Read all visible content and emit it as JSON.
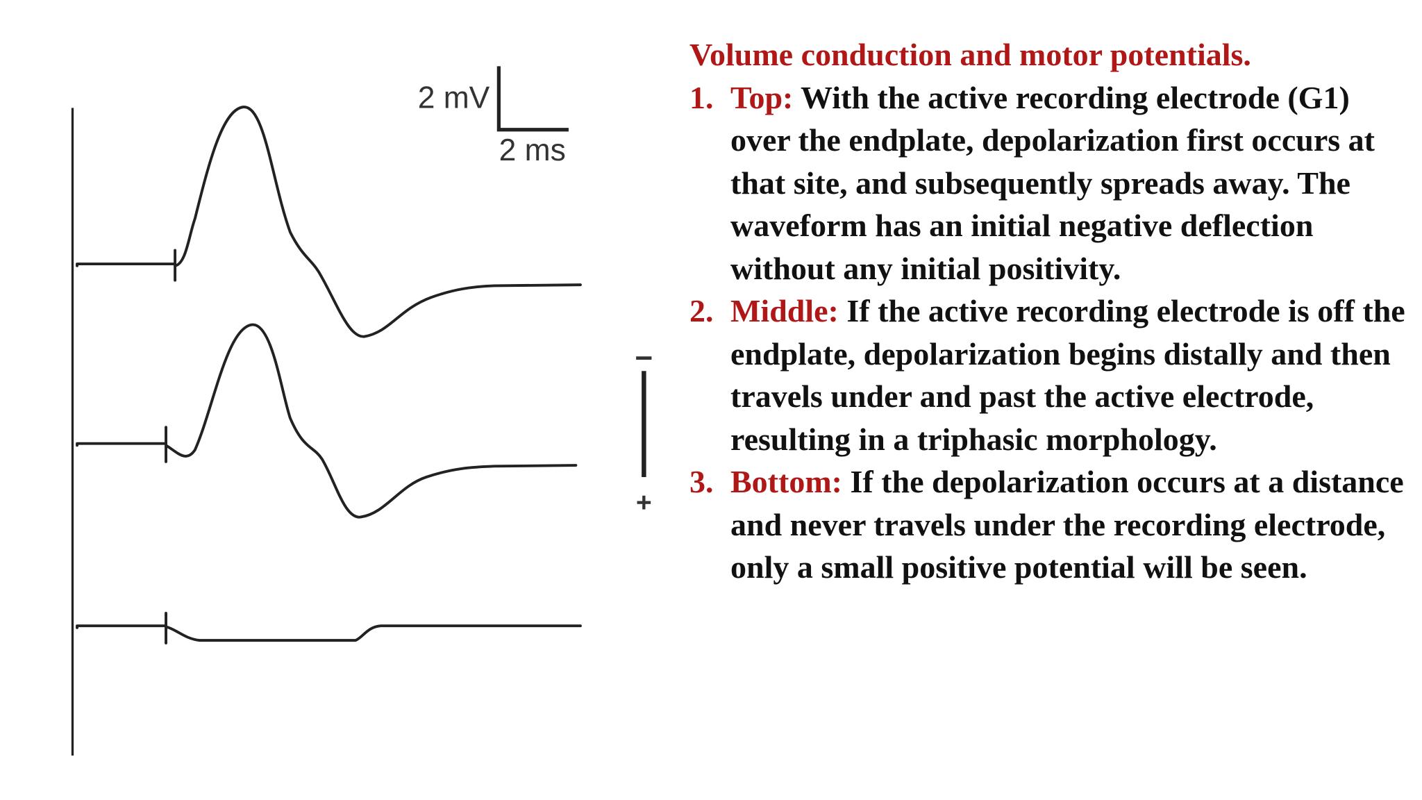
{
  "figure": {
    "scale_voltage": "2 mV",
    "scale_time": "2 ms",
    "electrode_negative": "−",
    "electrode_positive": "+"
  },
  "text": {
    "title": "Volume conduction and motor potentials.",
    "items": [
      {
        "number": "1.",
        "label": "Top:",
        "text": "With the active recording electrode (G1) over the endplate, depolarization first occurs at that site, and subsequently spreads away. The waveform has an initial negative deflection without any initial positivity."
      },
      {
        "number": "2.",
        "label": "Middle:",
        "text": "If the active recording electrode is off the endplate, depolarization begins distally and then travels under and past the active electrode, resulting in a triphasic morphology."
      },
      {
        "number": "3.",
        "label": "Bottom:",
        "text": "If the depolarization occurs at a distance and never travels under the recording electrode, only a small positive potential will be seen."
      }
    ]
  }
}
